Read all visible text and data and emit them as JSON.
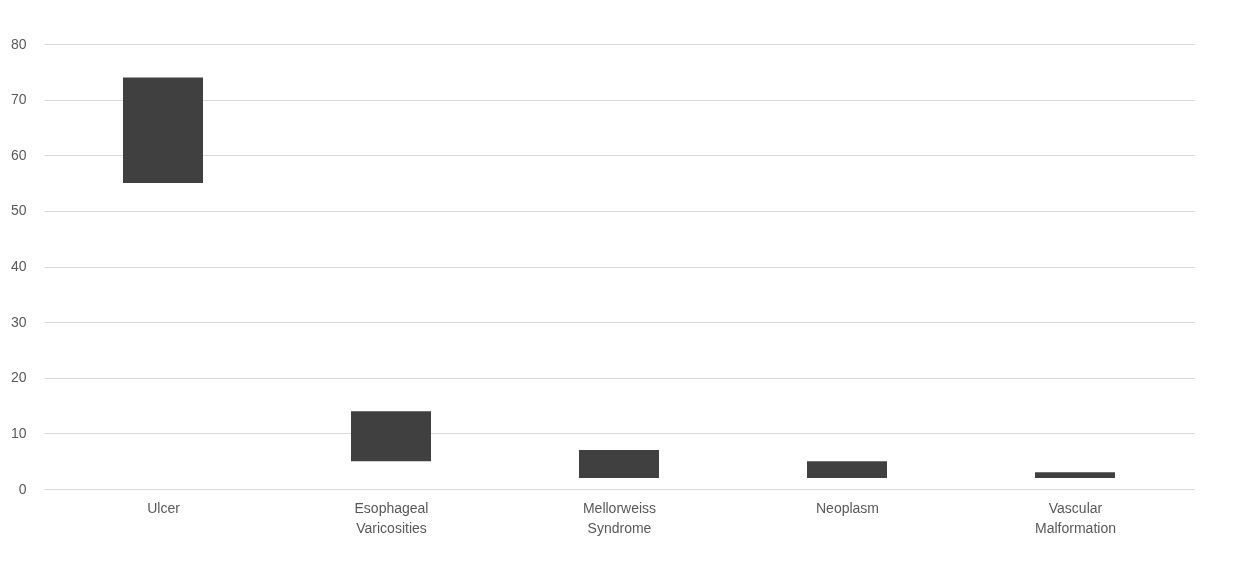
{
  "chart_data": {
    "type": "bar",
    "categories": [
      "Ulcer",
      "Esophageal Varicosities",
      "Mellorweiss Syndrome",
      "Neoplasm",
      "Vascular Malformation"
    ],
    "base": [
      55,
      5,
      2,
      2,
      2
    ],
    "values": [
      19,
      9,
      5,
      3,
      1
    ],
    "color": "#404040",
    "ylim": [
      0,
      80
    ],
    "yticks": [
      0,
      10,
      20,
      30,
      40,
      50,
      60,
      70,
      80
    ],
    "grid": "y"
  }
}
